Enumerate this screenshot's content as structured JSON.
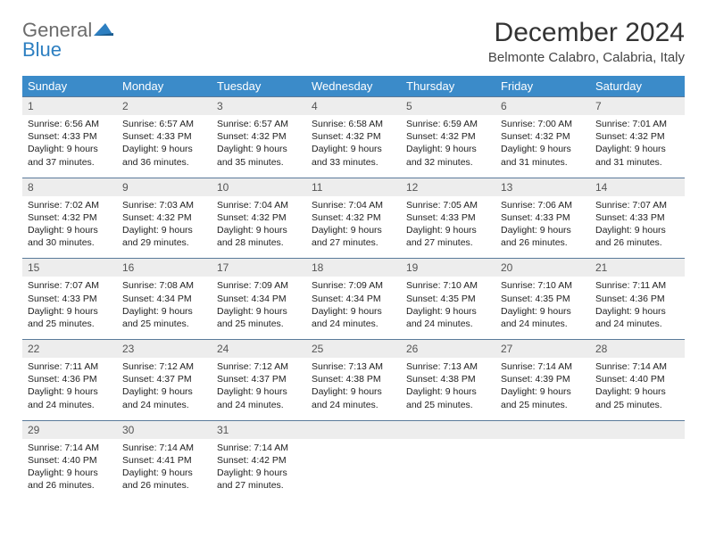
{
  "logo": {
    "general": "General",
    "blue": "Blue"
  },
  "title": "December 2024",
  "location": "Belmonte Calabro, Calabria, Italy",
  "colors": {
    "header_bg": "#3b8bc9",
    "header_text": "#ffffff",
    "daynum_bg": "#ededed",
    "border": "#5a7a9a",
    "logo_gray": "#6b6b6b",
    "logo_blue": "#2d7fc1"
  },
  "weekdays": [
    "Sunday",
    "Monday",
    "Tuesday",
    "Wednesday",
    "Thursday",
    "Friday",
    "Saturday"
  ],
  "weeks": [
    [
      {
        "n": "1",
        "sr": "Sunrise: 6:56 AM",
        "ss": "Sunset: 4:33 PM",
        "d1": "Daylight: 9 hours",
        "d2": "and 37 minutes."
      },
      {
        "n": "2",
        "sr": "Sunrise: 6:57 AM",
        "ss": "Sunset: 4:33 PM",
        "d1": "Daylight: 9 hours",
        "d2": "and 36 minutes."
      },
      {
        "n": "3",
        "sr": "Sunrise: 6:57 AM",
        "ss": "Sunset: 4:32 PM",
        "d1": "Daylight: 9 hours",
        "d2": "and 35 minutes."
      },
      {
        "n": "4",
        "sr": "Sunrise: 6:58 AM",
        "ss": "Sunset: 4:32 PM",
        "d1": "Daylight: 9 hours",
        "d2": "and 33 minutes."
      },
      {
        "n": "5",
        "sr": "Sunrise: 6:59 AM",
        "ss": "Sunset: 4:32 PM",
        "d1": "Daylight: 9 hours",
        "d2": "and 32 minutes."
      },
      {
        "n": "6",
        "sr": "Sunrise: 7:00 AM",
        "ss": "Sunset: 4:32 PM",
        "d1": "Daylight: 9 hours",
        "d2": "and 31 minutes."
      },
      {
        "n": "7",
        "sr": "Sunrise: 7:01 AM",
        "ss": "Sunset: 4:32 PM",
        "d1": "Daylight: 9 hours",
        "d2": "and 31 minutes."
      }
    ],
    [
      {
        "n": "8",
        "sr": "Sunrise: 7:02 AM",
        "ss": "Sunset: 4:32 PM",
        "d1": "Daylight: 9 hours",
        "d2": "and 30 minutes."
      },
      {
        "n": "9",
        "sr": "Sunrise: 7:03 AM",
        "ss": "Sunset: 4:32 PM",
        "d1": "Daylight: 9 hours",
        "d2": "and 29 minutes."
      },
      {
        "n": "10",
        "sr": "Sunrise: 7:04 AM",
        "ss": "Sunset: 4:32 PM",
        "d1": "Daylight: 9 hours",
        "d2": "and 28 minutes."
      },
      {
        "n": "11",
        "sr": "Sunrise: 7:04 AM",
        "ss": "Sunset: 4:32 PM",
        "d1": "Daylight: 9 hours",
        "d2": "and 27 minutes."
      },
      {
        "n": "12",
        "sr": "Sunrise: 7:05 AM",
        "ss": "Sunset: 4:33 PM",
        "d1": "Daylight: 9 hours",
        "d2": "and 27 minutes."
      },
      {
        "n": "13",
        "sr": "Sunrise: 7:06 AM",
        "ss": "Sunset: 4:33 PM",
        "d1": "Daylight: 9 hours",
        "d2": "and 26 minutes."
      },
      {
        "n": "14",
        "sr": "Sunrise: 7:07 AM",
        "ss": "Sunset: 4:33 PM",
        "d1": "Daylight: 9 hours",
        "d2": "and 26 minutes."
      }
    ],
    [
      {
        "n": "15",
        "sr": "Sunrise: 7:07 AM",
        "ss": "Sunset: 4:33 PM",
        "d1": "Daylight: 9 hours",
        "d2": "and 25 minutes."
      },
      {
        "n": "16",
        "sr": "Sunrise: 7:08 AM",
        "ss": "Sunset: 4:34 PM",
        "d1": "Daylight: 9 hours",
        "d2": "and 25 minutes."
      },
      {
        "n": "17",
        "sr": "Sunrise: 7:09 AM",
        "ss": "Sunset: 4:34 PM",
        "d1": "Daylight: 9 hours",
        "d2": "and 25 minutes."
      },
      {
        "n": "18",
        "sr": "Sunrise: 7:09 AM",
        "ss": "Sunset: 4:34 PM",
        "d1": "Daylight: 9 hours",
        "d2": "and 24 minutes."
      },
      {
        "n": "19",
        "sr": "Sunrise: 7:10 AM",
        "ss": "Sunset: 4:35 PM",
        "d1": "Daylight: 9 hours",
        "d2": "and 24 minutes."
      },
      {
        "n": "20",
        "sr": "Sunrise: 7:10 AM",
        "ss": "Sunset: 4:35 PM",
        "d1": "Daylight: 9 hours",
        "d2": "and 24 minutes."
      },
      {
        "n": "21",
        "sr": "Sunrise: 7:11 AM",
        "ss": "Sunset: 4:36 PM",
        "d1": "Daylight: 9 hours",
        "d2": "and 24 minutes."
      }
    ],
    [
      {
        "n": "22",
        "sr": "Sunrise: 7:11 AM",
        "ss": "Sunset: 4:36 PM",
        "d1": "Daylight: 9 hours",
        "d2": "and 24 minutes."
      },
      {
        "n": "23",
        "sr": "Sunrise: 7:12 AM",
        "ss": "Sunset: 4:37 PM",
        "d1": "Daylight: 9 hours",
        "d2": "and 24 minutes."
      },
      {
        "n": "24",
        "sr": "Sunrise: 7:12 AM",
        "ss": "Sunset: 4:37 PM",
        "d1": "Daylight: 9 hours",
        "d2": "and 24 minutes."
      },
      {
        "n": "25",
        "sr": "Sunrise: 7:13 AM",
        "ss": "Sunset: 4:38 PM",
        "d1": "Daylight: 9 hours",
        "d2": "and 24 minutes."
      },
      {
        "n": "26",
        "sr": "Sunrise: 7:13 AM",
        "ss": "Sunset: 4:38 PM",
        "d1": "Daylight: 9 hours",
        "d2": "and 25 minutes."
      },
      {
        "n": "27",
        "sr": "Sunrise: 7:14 AM",
        "ss": "Sunset: 4:39 PM",
        "d1": "Daylight: 9 hours",
        "d2": "and 25 minutes."
      },
      {
        "n": "28",
        "sr": "Sunrise: 7:14 AM",
        "ss": "Sunset: 4:40 PM",
        "d1": "Daylight: 9 hours",
        "d2": "and 25 minutes."
      }
    ],
    [
      {
        "n": "29",
        "sr": "Sunrise: 7:14 AM",
        "ss": "Sunset: 4:40 PM",
        "d1": "Daylight: 9 hours",
        "d2": "and 26 minutes."
      },
      {
        "n": "30",
        "sr": "Sunrise: 7:14 AM",
        "ss": "Sunset: 4:41 PM",
        "d1": "Daylight: 9 hours",
        "d2": "and 26 minutes."
      },
      {
        "n": "31",
        "sr": "Sunrise: 7:14 AM",
        "ss": "Sunset: 4:42 PM",
        "d1": "Daylight: 9 hours",
        "d2": "and 27 minutes."
      },
      null,
      null,
      null,
      null
    ]
  ]
}
